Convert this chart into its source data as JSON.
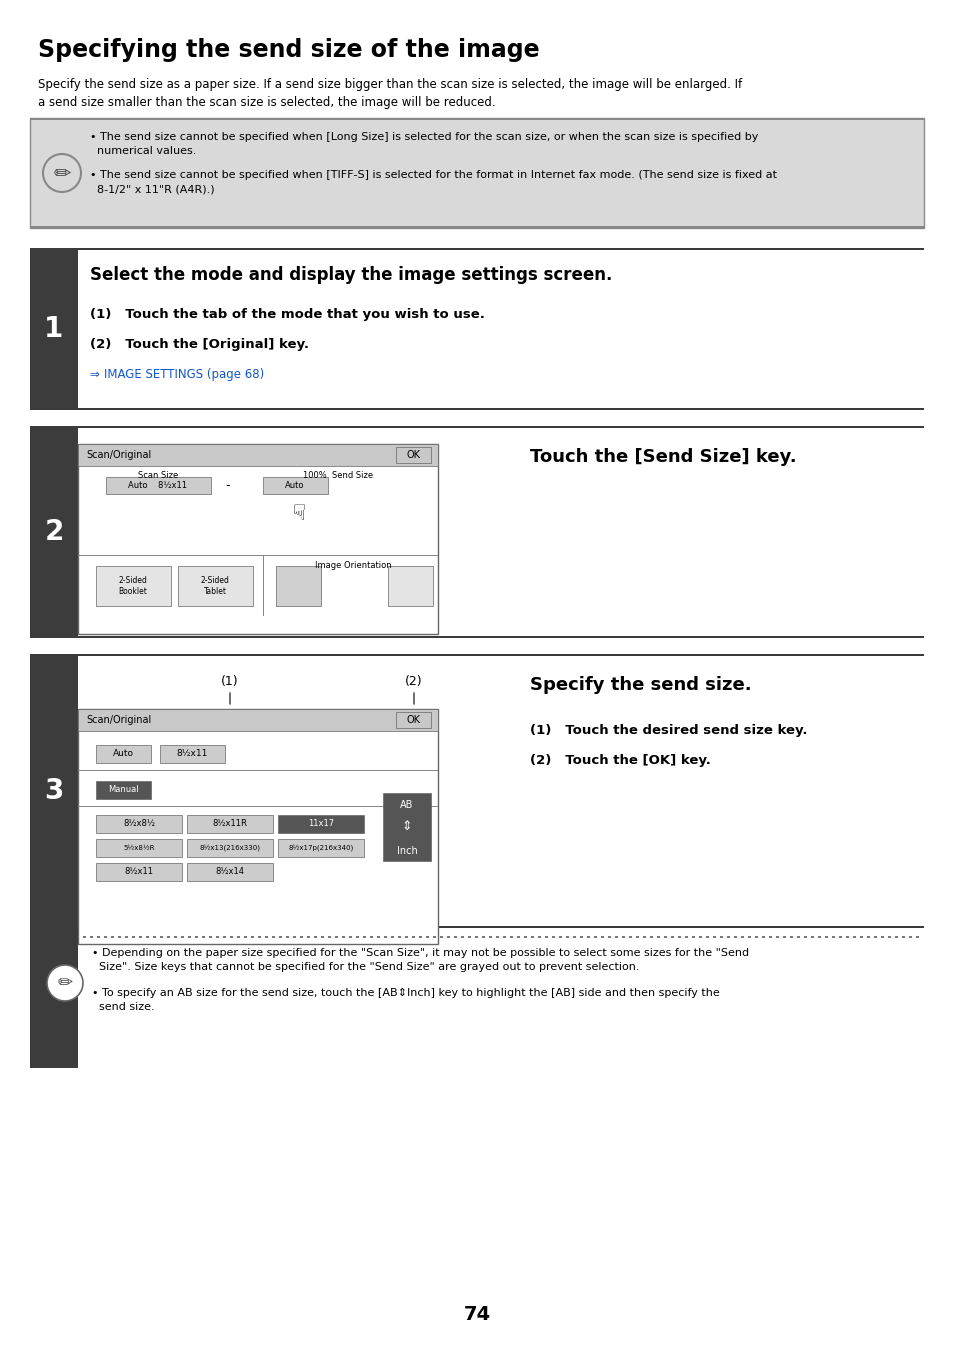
{
  "title": "Specifying the send size of the image",
  "intro_text1": "Specify the send size as a paper size. If a send size bigger than the scan size is selected, the image will be enlarged. If",
  "intro_text2": "a send size smaller than the scan size is selected, the image will be reduced.",
  "note_bullet1": "• The send size cannot be specified when [Long Size] is selected for the scan size, or when the scan size is specified by",
  "note_bullet1b": "  numerical values.",
  "note_bullet2": "• The send size cannot be specified when [TIFF-S] is selected for the format in Internet fax mode. (The send size is fixed at",
  "note_bullet2b": "  8-1/2\" x 11\"R (A4R).)",
  "step1_title": "Select the mode and display the image settings screen.",
  "step1_sub1": "(1)   Touch the tab of the mode that you wish to use.",
  "step1_sub2": "(2)   Touch the [Original] key.",
  "step1_link": "IMAGE SETTINGS (page 68)",
  "step2_title": "Touch the [Send Size] key.",
  "step3_title": "Specify the send size.",
  "step3_sub1": "(1)   Touch the desired send size key.",
  "step3_sub2": "(2)   Touch the [OK] key.",
  "bottom_b1": "• Depending on the paper size specified for the \"Scan Size\", it may not be possible to select some sizes for the \"Send",
  "bottom_b1b": "  Size\". Size keys that cannot be specified for the \"Send Size\" are grayed out to prevent selection.",
  "bottom_b2": "• To specify an AB size for the send size, touch the [AB⇕Inch] key to highlight the [AB] side and then specify the",
  "bottom_b2b": "  send size.",
  "page_number": "74",
  "dark_color": "#3c3c3c",
  "note_bg": "#d9d9d9",
  "link_color": "#1155cc",
  "white": "#ffffff",
  "black": "#000000",
  "mid_gray": "#888888",
  "light_gray": "#d0d0d0",
  "btn_gray": "#e0e0e0"
}
